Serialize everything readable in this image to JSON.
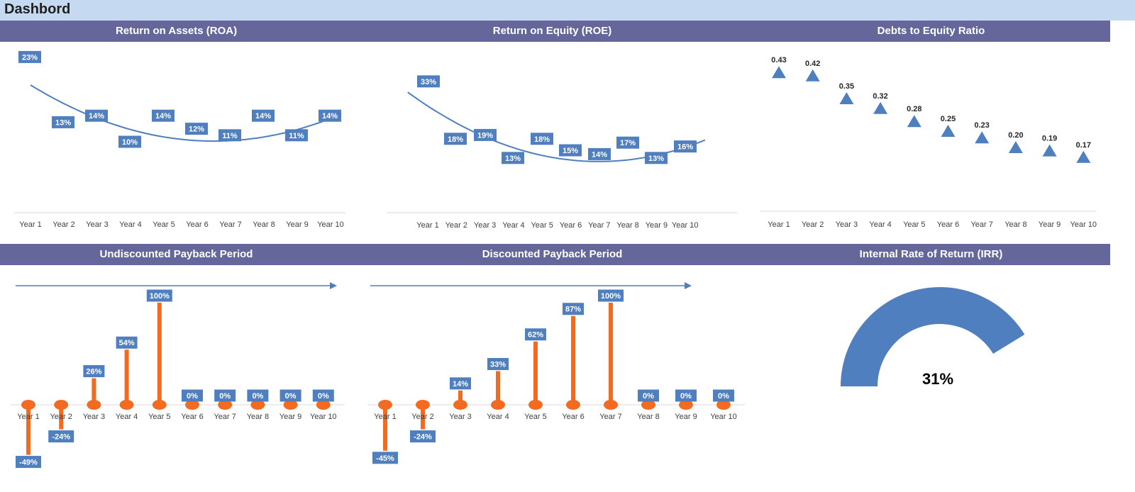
{
  "page": {
    "title": "Dashbord"
  },
  "colors": {
    "header_bg": "#65669a",
    "topbar_bg": "#c5daf0",
    "accent_blue": "#4f7fbf",
    "accent_orange": "#f26b21"
  },
  "chart_data": [
    {
      "id": "roa",
      "type": "line",
      "title": "Return on Assets (ROA)",
      "categories": [
        "Year 1",
        "Year 2",
        "Year 3",
        "Year 4",
        "Year 5",
        "Year 6",
        "Year 7",
        "Year 8",
        "Year 9",
        "Year 10"
      ],
      "values": [
        23,
        13,
        14,
        10,
        14,
        12,
        11,
        14,
        11,
        14
      ],
      "labels": [
        "23%",
        "13%",
        "14%",
        "10%",
        "14%",
        "12%",
        "11%",
        "14%",
        "11%",
        "14%"
      ],
      "trendline": "polynomial"
    },
    {
      "id": "roe",
      "type": "line",
      "title": "Return on Equity (ROE)",
      "categories": [
        "Year 1",
        "Year 2",
        "Year 3",
        "Year 4",
        "Year 5",
        "Year 6",
        "Year 7",
        "Year 8",
        "Year 9",
        "Year 10"
      ],
      "values": [
        33,
        18,
        19,
        13,
        18,
        15,
        14,
        17,
        13,
        16
      ],
      "labels": [
        "33%",
        "18%",
        "19%",
        "13%",
        "18%",
        "15%",
        "14%",
        "17%",
        "13%",
        "16%"
      ],
      "trendline": "polynomial"
    },
    {
      "id": "de",
      "type": "scatter",
      "title": "Debts to Equity Ratio",
      "categories": [
        "Year 1",
        "Year 2",
        "Year 3",
        "Year 4",
        "Year 5",
        "Year 6",
        "Year 7",
        "Year 8",
        "Year 9",
        "Year 10"
      ],
      "values": [
        0.43,
        0.42,
        0.35,
        0.32,
        0.28,
        0.25,
        0.23,
        0.2,
        0.19,
        0.17
      ],
      "labels": [
        "0.43",
        "0.42",
        "0.35",
        "0.32",
        "0.28",
        "0.25",
        "0.23",
        "0.20",
        "0.19",
        "0.17"
      ],
      "marker": "triangle"
    },
    {
      "id": "upp",
      "type": "bar",
      "title": "Undiscounted Payback Period",
      "categories": [
        "Year 1",
        "Year 2",
        "Year 3",
        "Year 4",
        "Year 5",
        "Year 6",
        "Year 7",
        "Year 8",
        "Year 9",
        "Year 10"
      ],
      "values": [
        -49,
        -24,
        26,
        54,
        100,
        0,
        0,
        0,
        0,
        0
      ],
      "labels": [
        "-49%",
        "-24%",
        "26%",
        "54%",
        "100%",
        "0%",
        "0%",
        "0%",
        "0%",
        "0%"
      ]
    },
    {
      "id": "dpp",
      "type": "bar",
      "title": "Discounted Payback Period",
      "categories": [
        "Year 1",
        "Year 2",
        "Year 3",
        "Year 4",
        "Year 5",
        "Year 6",
        "Year 7",
        "Year 8",
        "Year 9",
        "Year 10"
      ],
      "values": [
        -45,
        -24,
        14,
        33,
        62,
        87,
        100,
        0,
        0,
        0
      ],
      "labels": [
        "-45%",
        "-24%",
        "14%",
        "33%",
        "62%",
        "87%",
        "100%",
        "0%",
        "0%",
        "0%"
      ]
    },
    {
      "id": "irr",
      "type": "pie",
      "title": "Internal Rate of Return (IRR)",
      "value": 31,
      "label": "31%"
    }
  ]
}
